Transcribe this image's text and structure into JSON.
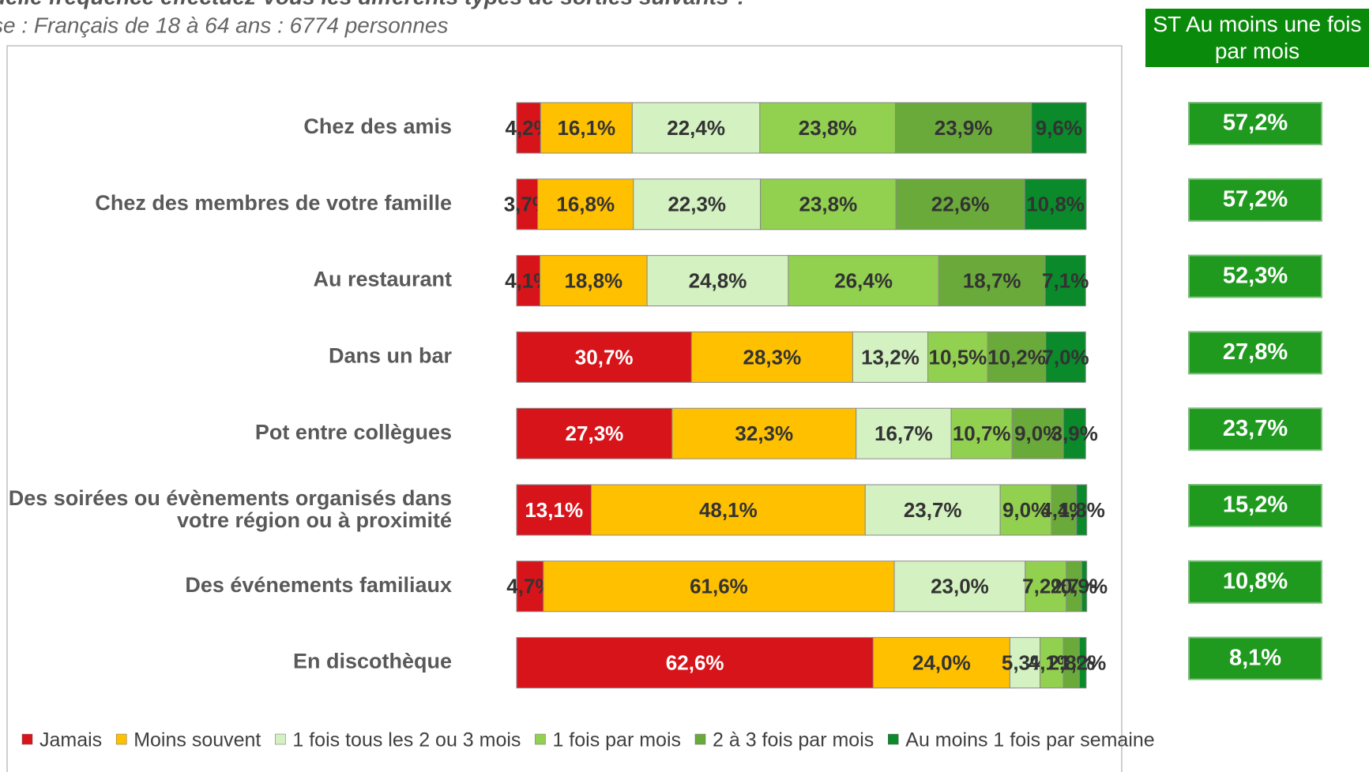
{
  "chart_data": {
    "type": "stacked-bar-horizontal",
    "title": "uelle fréquence effectuez-vous les différents types de sorties suivants ?",
    "subtitle": "se : Français de 18 à 64 ans : 6774 personnes",
    "categories": [
      "Chez des amis",
      "Chez des membres de votre famille",
      "Au restaurant",
      "Dans un bar",
      "Pot entre collègues",
      "Des soirées ou évènements organisés dans votre région ou à proximité",
      "Des événements familiaux",
      "En discothèque"
    ],
    "xlim": [
      0,
      100
    ],
    "series": [
      {
        "name": "Jamais",
        "color": "#d7141a",
        "values": [
          4.2,
          3.7,
          4.1,
          30.7,
          27.3,
          13.1,
          4.7,
          62.6
        ],
        "value_labels": [
          "4,2%",
          "3,7%",
          "4,1%",
          "30,7%",
          "27,3%",
          "13,1%",
          "4,7%",
          "62,6%"
        ]
      },
      {
        "name": "Moins souvent",
        "color": "#ffc000",
        "values": [
          16.1,
          16.8,
          18.8,
          28.3,
          32.3,
          48.1,
          61.6,
          24.0
        ],
        "value_labels": [
          "16,1%",
          "16,8%",
          "18,8%",
          "28,3%",
          "32,3%",
          "48,1%",
          "61,6%",
          "24,0%"
        ]
      },
      {
        "name": "1 fois tous les 2 ou 3 mois",
        "color": "#d3f1c1",
        "values": [
          22.4,
          22.3,
          24.8,
          13.2,
          16.7,
          23.7,
          23.0,
          5.3
        ],
        "value_labels": [
          "22,4%",
          "22,3%",
          "24,8%",
          "13,2%",
          "16,7%",
          "23,7%",
          "23,0%",
          "5,3%"
        ]
      },
      {
        "name": "1 fois par mois",
        "color": "#92d050",
        "values": [
          23.8,
          23.8,
          26.4,
          10.5,
          10.7,
          9.0,
          7.2,
          4.1
        ],
        "value_labels": [
          "23,8%",
          "23,8%",
          "26,4%",
          "10,5%",
          "10,7%",
          "9,0%",
          "7,2%",
          "4,1%"
        ]
      },
      {
        "name": "2 à 3 fois par mois",
        "color": "#6aaa3a",
        "values": [
          23.9,
          22.6,
          18.7,
          10.2,
          9.0,
          4.4,
          2.7,
          2.8
        ],
        "value_labels": [
          "23,9%",
          "22,6%",
          "18,7%",
          "10,2%",
          "9,0%",
          "4,4%",
          "2,7%",
          "2,8%"
        ]
      },
      {
        "name": "Au moins 1 fois par semaine",
        "color": "#0a8a2a",
        "values": [
          9.6,
          10.8,
          7.1,
          7.0,
          3.9,
          1.8,
          0.9,
          1.2
        ],
        "value_labels": [
          "9,6%",
          "10,8%",
          "7,1%",
          "7,0%",
          "3,9%",
          "1,8%",
          "0,9%",
          "1,2%"
        ]
      }
    ],
    "st": {
      "name": "ST Au moins une fois par mois",
      "color": "#1f9a1f",
      "values": [
        57.2,
        57.2,
        52.3,
        27.8,
        23.7,
        15.2,
        10.8,
        8.1
      ],
      "value_labels": [
        "57,2%",
        "57,2%",
        "52,3%",
        "27,8%",
        "23,7%",
        "15,2%",
        "10,8%",
        "8,1%"
      ]
    }
  }
}
